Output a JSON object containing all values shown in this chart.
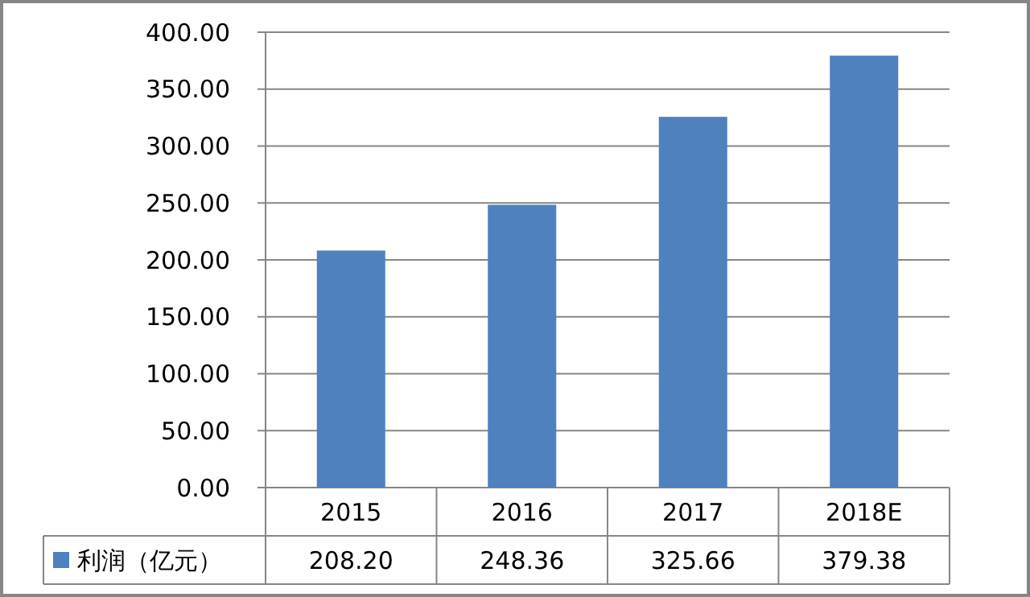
{
  "chart_data": {
    "type": "bar",
    "categories": [
      "2015",
      "2016",
      "2017",
      "2018E"
    ],
    "series": [
      {
        "name": "利润（亿元）",
        "color": "#4f81bd",
        "values": [
          208.2,
          248.36,
          325.66,
          379.38
        ],
        "value_labels": [
          "208.20",
          "248.36",
          "325.66",
          "379.38"
        ]
      }
    ],
    "ylim": [
      0,
      400
    ],
    "yticks": [
      {
        "value": 0,
        "label": "0.00"
      },
      {
        "value": 50,
        "label": "50.00"
      },
      {
        "value": 100,
        "label": "100.00"
      },
      {
        "value": 150,
        "label": "150.00"
      },
      {
        "value": 200,
        "label": "200.00"
      },
      {
        "value": 250,
        "label": "250.00"
      },
      {
        "value": 300,
        "label": "300.00"
      },
      {
        "value": 350,
        "label": "350.00"
      },
      {
        "value": 400,
        "label": "400.00"
      }
    ],
    "grid": "y",
    "legend": "bottom"
  }
}
